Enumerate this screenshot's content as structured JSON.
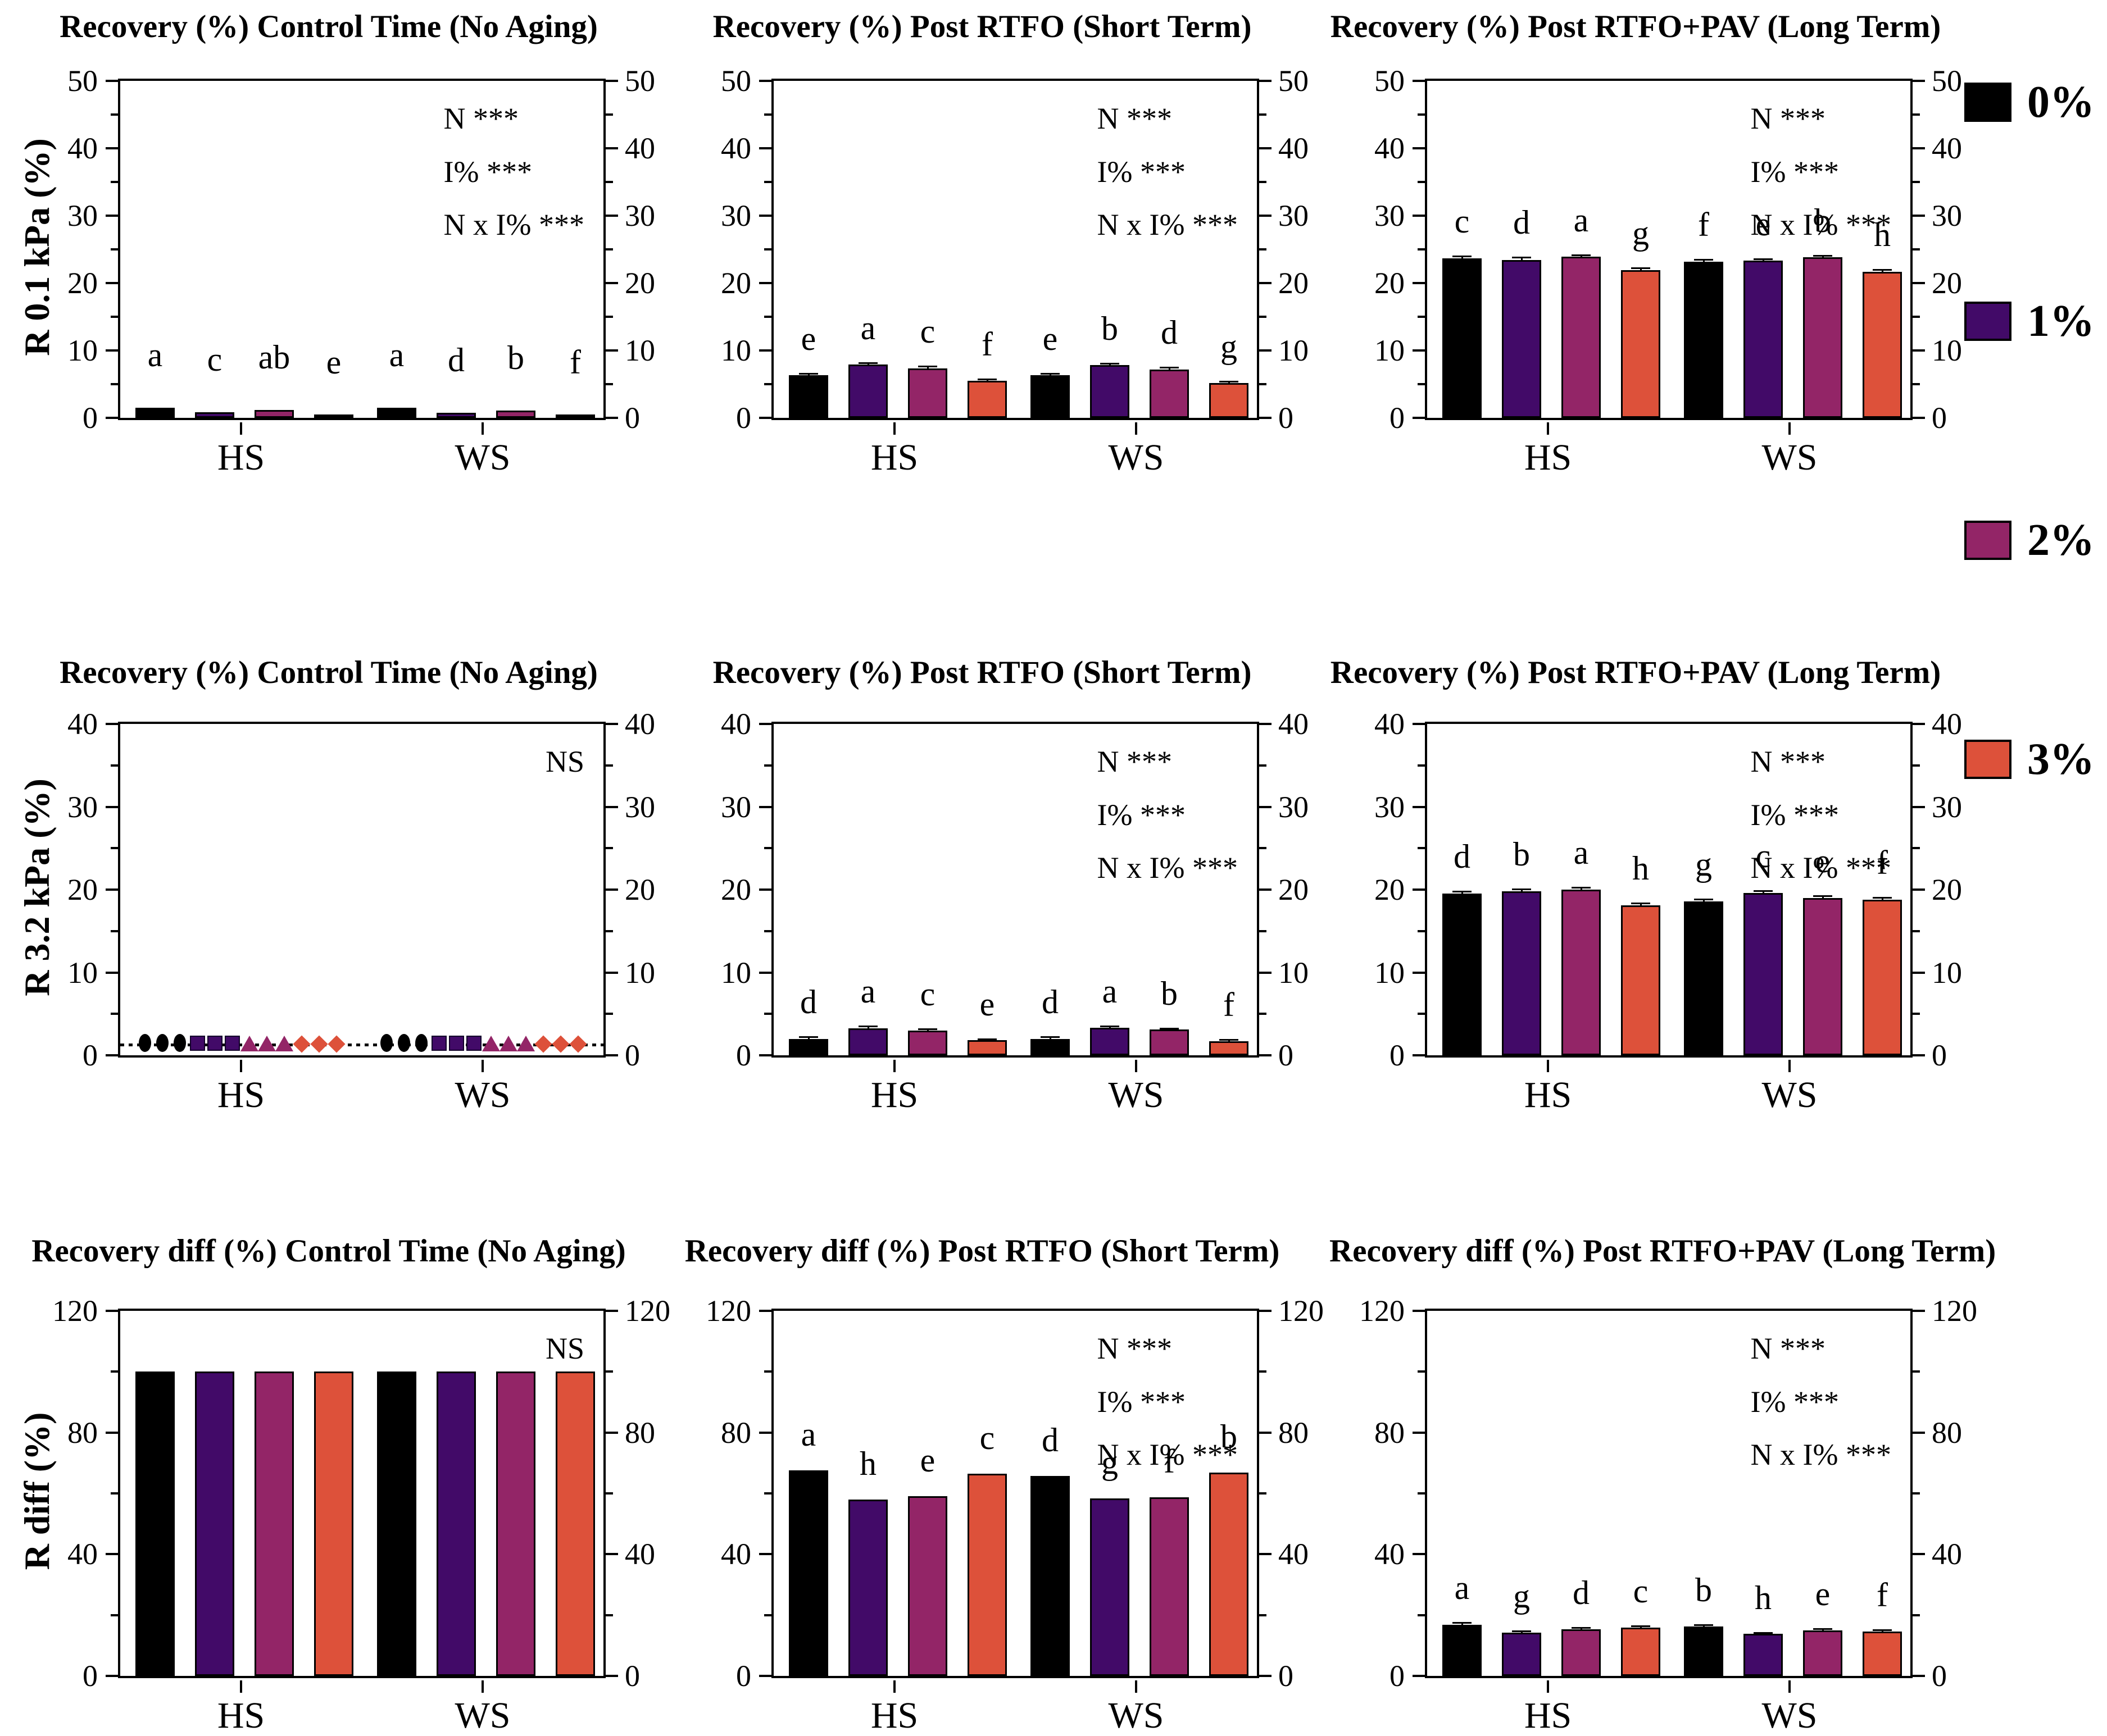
{
  "figure": {
    "background": "#ffffff"
  },
  "legend": {
    "items": [
      {
        "label": "0%",
        "color": "#000000"
      },
      {
        "label": "1%",
        "color": "#420A68"
      },
      {
        "label": "2%",
        "color": "#932567"
      },
      {
        "label": "3%",
        "color": "#DD513A"
      }
    ]
  },
  "chart_data": [
    {
      "type": "bar",
      "title": "Recovery (%) Control Time (No Aging)",
      "ylabel": "R 0.1 kPa (%)",
      "ylim": [
        0,
        50
      ],
      "ytick_major": 10,
      "ytick_minor": 5,
      "stats": [
        "N ***",
        "I% ***",
        "N x I% ***"
      ],
      "categories": [
        "HS",
        "WS"
      ],
      "series_labels": [
        "0%",
        "1%",
        "2%",
        "3%"
      ],
      "values": {
        "HS": [
          1.5,
          0.8,
          1.2,
          0.45
        ],
        "WS": [
          1.5,
          0.75,
          1.1,
          0.4
        ]
      },
      "errors": {
        "HS": [
          0,
          0,
          0,
          0
        ],
        "WS": [
          0,
          0,
          0,
          0
        ]
      },
      "letters": {
        "HS": [
          "a",
          "c",
          "ab",
          "e"
        ],
        "WS": [
          "a",
          "d",
          "b",
          "f"
        ]
      }
    },
    {
      "type": "bar",
      "title": "Recovery (%) Post RTFO (Short Term)",
      "ylabel": "",
      "ylim": [
        0,
        50
      ],
      "ytick_major": 10,
      "ytick_minor": 5,
      "stats": [
        "N ***",
        "I% ***",
        "N x I% ***"
      ],
      "categories": [
        "HS",
        "WS"
      ],
      "series_labels": [
        "0%",
        "1%",
        "2%",
        "3%"
      ],
      "values": {
        "HS": [
          6.3,
          7.9,
          7.3,
          5.5
        ],
        "WS": [
          6.3,
          7.8,
          7.2,
          5.2
        ]
      },
      "errors": {
        "HS": [
          0.15,
          0.1,
          0.2,
          0.1
        ],
        "WS": [
          0.12,
          0.1,
          0.1,
          0.08
        ]
      },
      "letters": {
        "HS": [
          "e",
          "a",
          "c",
          "f"
        ],
        "WS": [
          "e",
          "b",
          "d",
          "g"
        ]
      }
    },
    {
      "type": "bar",
      "title": "Recovery (%) Post RTFO+PAV (Long Term)",
      "ylabel": "",
      "ylim": [
        0,
        50
      ],
      "ytick_major": 10,
      "ytick_minor": 5,
      "stats": [
        "N ***",
        "I% ***",
        "N x I% ***"
      ],
      "categories": [
        "HS",
        "WS"
      ],
      "series_labels": [
        "0%",
        "1%",
        "2%",
        "3%"
      ],
      "values": {
        "HS": [
          23.7,
          23.4,
          23.9,
          21.9
        ],
        "WS": [
          23.2,
          23.3,
          23.8,
          21.7
        ]
      },
      "errors": {
        "HS": [
          0.1,
          0.25,
          0.12,
          0.2
        ],
        "WS": [
          0.1,
          0.1,
          0.15,
          0.12
        ]
      },
      "letters": {
        "HS": [
          "c",
          "d",
          "a",
          "g"
        ],
        "WS": [
          "f",
          "e",
          "b",
          "h"
        ]
      }
    },
    {
      "type": "scatter",
      "title": "Recovery (%) Control Time (No Aging)",
      "ylabel": "R 3.2 kPa (%)",
      "ylim": [
        0,
        40
      ],
      "ytick_major": 10,
      "ytick_minor": 5,
      "stats": [
        "NS"
      ],
      "categories": [
        "HS",
        "WS"
      ],
      "series_labels": [
        "0%",
        "1%",
        "2%",
        "3%"
      ],
      "points_per_series": 3,
      "point_value": 0.2,
      "marker_shapes": [
        "circle",
        "square",
        "triangle",
        "diamond"
      ]
    },
    {
      "type": "bar",
      "title": "Recovery (%) Post RTFO (Short Term)",
      "ylabel": "",
      "ylim": [
        0,
        40
      ],
      "ytick_major": 10,
      "ytick_minor": 5,
      "stats": [
        "N ***",
        "I% ***",
        "N x I% ***"
      ],
      "categories": [
        "HS",
        "WS"
      ],
      "series_labels": [
        "0%",
        "1%",
        "2%",
        "3%"
      ],
      "values": {
        "HS": [
          2.0,
          3.25,
          3.0,
          1.8
        ],
        "WS": [
          2.0,
          3.3,
          3.1,
          1.7
        ]
      },
      "errors": {
        "HS": [
          0.12,
          0.12,
          0.05,
          0.05
        ],
        "WS": [
          0.1,
          0.12,
          0.05,
          0.05
        ]
      },
      "letters": {
        "HS": [
          "d",
          "a",
          "c",
          "e"
        ],
        "WS": [
          "d",
          "a",
          "b",
          "f"
        ]
      }
    },
    {
      "type": "bar",
      "title": "Recovery (%) Post RTFO+PAV (Long Term)",
      "ylabel": "",
      "ylim": [
        0,
        40
      ],
      "ytick_major": 10,
      "ytick_minor": 5,
      "stats": [
        "N ***",
        "I% ***",
        "N x I% ***"
      ],
      "categories": [
        "HS",
        "WS"
      ],
      "series_labels": [
        "0%",
        "1%",
        "2%",
        "3%"
      ],
      "values": {
        "HS": [
          19.5,
          19.8,
          20.0,
          18.1
        ],
        "WS": [
          18.6,
          19.6,
          19.0,
          18.8
        ]
      },
      "errors": {
        "HS": [
          0.15,
          0.15,
          0.15,
          0.12
        ],
        "WS": [
          0.1,
          0.15,
          0.1,
          0.12
        ]
      },
      "letters": {
        "HS": [
          "d",
          "b",
          "a",
          "h"
        ],
        "WS": [
          "g",
          "c",
          "e",
          "f"
        ]
      }
    },
    {
      "type": "bar",
      "title": "Recovery diff (%) Control Time (No Aging)",
      "ylabel": "R diff (%)",
      "ylim": [
        0,
        120
      ],
      "ytick_major": 40,
      "ytick_minor": 20,
      "stats": [
        "NS"
      ],
      "categories": [
        "HS",
        "WS"
      ],
      "series_labels": [
        "0%",
        "1%",
        "2%",
        "3%"
      ],
      "values": {
        "HS": [
          100,
          100,
          100,
          100
        ],
        "WS": [
          100,
          100,
          100,
          100
        ]
      },
      "errors": {
        "HS": [
          0,
          0,
          0,
          0
        ],
        "WS": [
          0,
          0,
          0,
          0
        ]
      },
      "letters": {
        "HS": [
          "",
          "",
          "",
          ""
        ],
        "WS": [
          "",
          "",
          "",
          ""
        ]
      }
    },
    {
      "type": "bar",
      "title": "Recovery diff (%) Post RTFO (Short Term)",
      "ylabel": "",
      "ylim": [
        0,
        120
      ],
      "ytick_major": 40,
      "ytick_minor": 20,
      "stats": [
        "N ***",
        "I% ***",
        "N x I% ***"
      ],
      "categories": [
        "HS",
        "WS"
      ],
      "series_labels": [
        "0%",
        "1%",
        "2%",
        "3%"
      ],
      "values": {
        "HS": [
          67.5,
          58.0,
          59.0,
          66.5
        ],
        "WS": [
          65.8,
          58.4,
          58.7,
          66.9
        ]
      },
      "errors": {
        "HS": [
          0,
          0,
          0,
          0
        ],
        "WS": [
          0,
          0,
          0,
          0
        ]
      },
      "letters": {
        "HS": [
          "a",
          "h",
          "e",
          "c"
        ],
        "WS": [
          "d",
          "g",
          "f",
          "b"
        ]
      }
    },
    {
      "type": "bar",
      "title": "Recovery diff (%) Post RTFO+PAV (Long Term)",
      "ylabel": "",
      "ylim": [
        0,
        120
      ],
      "ytick_major": 40,
      "ytick_minor": 20,
      "stats": [
        "N ***",
        "I% ***",
        "N x I% ***"
      ],
      "categories": [
        "HS",
        "WS"
      ],
      "series_labels": [
        "0%",
        "1%",
        "2%",
        "3%"
      ],
      "values": {
        "HS": [
          16.8,
          14.2,
          15.3,
          15.9
        ],
        "WS": [
          16.2,
          13.8,
          14.9,
          14.6
        ]
      },
      "errors": {
        "HS": [
          0.4,
          0.2,
          0.25,
          0.1
        ],
        "WS": [
          0.2,
          0.1,
          0.2,
          0.1
        ]
      },
      "letters": {
        "HS": [
          "a",
          "g",
          "d",
          "c"
        ],
        "WS": [
          "b",
          "h",
          "e",
          "f"
        ]
      }
    }
  ]
}
